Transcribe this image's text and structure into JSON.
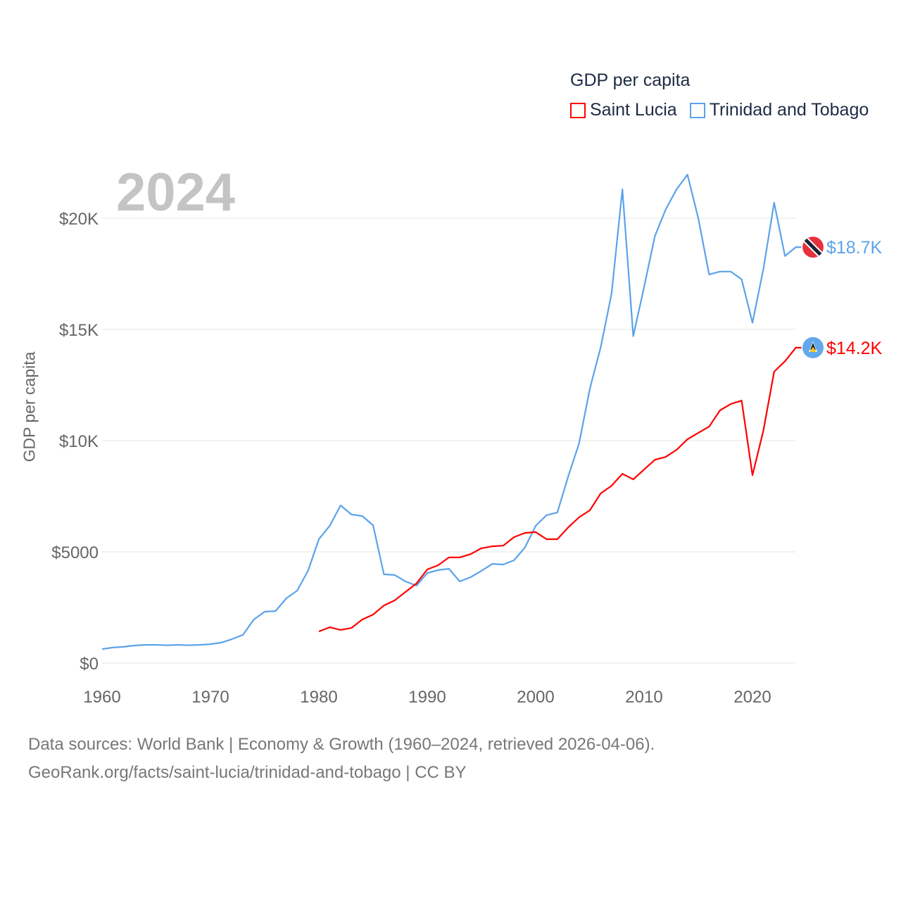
{
  "legend": {
    "title": "GDP per capita",
    "items": [
      {
        "label": "Saint Lucia",
        "color": "#ff0000"
      },
      {
        "label": "Trinidad and Tobago",
        "color": "#5ba3ea"
      }
    ]
  },
  "current_year": "2024",
  "footer": {
    "line1": "Data sources: World Bank | Economy & Growth (1960–2024, retrieved 2026-04-06).",
    "line2": "GeoRank.org/facts/saint-lucia/trinidad-and-tobago | CC BY"
  },
  "chart_data": {
    "type": "line",
    "title": "GDP per capita",
    "xlabel": "",
    "ylabel": "GDP per capita",
    "xlim": [
      1960,
      2024
    ],
    "ylim": [
      0,
      22000
    ],
    "grid": true,
    "legend_position": "top-right",
    "x_ticks": [
      1960,
      1970,
      1980,
      1990,
      2000,
      2010,
      2020
    ],
    "x_tick_labels": [
      "1960",
      "1970",
      "1980",
      "1990",
      "2000",
      "2010",
      "2020"
    ],
    "y_ticks": [
      0,
      5000,
      10000,
      15000,
      20000
    ],
    "y_tick_labels": [
      "$0",
      "$5000",
      "$10K",
      "$15K",
      "$20K"
    ],
    "series": [
      {
        "name": "Trinidad and Tobago",
        "color": "#5ba3ea",
        "end_label": "$18.7K",
        "start_year": 1960,
        "values": [
          630,
          700,
          730,
          790,
          820,
          820,
          800,
          820,
          800,
          820,
          850,
          920,
          1080,
          1270,
          1960,
          2310,
          2340,
          2910,
          3260,
          4150,
          5570,
          6170,
          7090,
          6680,
          6610,
          6200,
          3990,
          3960,
          3670,
          3480,
          4050,
          4180,
          4240,
          3670,
          3860,
          4150,
          4460,
          4430,
          4620,
          5190,
          6170,
          6650,
          6770,
          8390,
          9870,
          12340,
          14200,
          16600,
          21300,
          14700,
          16900,
          19200,
          20400,
          21300,
          21960,
          20000,
          17470,
          17600,
          17600,
          17250,
          15300,
          17700,
          20700,
          18300,
          18700
        ]
      },
      {
        "name": "Saint Lucia",
        "color": "#ff0000",
        "end_label": "$14.2K",
        "start_year": 1980,
        "values": [
          1420,
          1610,
          1490,
          1580,
          1960,
          2180,
          2590,
          2820,
          3200,
          3580,
          4210,
          4400,
          4750,
          4750,
          4900,
          5160,
          5250,
          5280,
          5660,
          5850,
          5890,
          5570,
          5570,
          6100,
          6550,
          6870,
          7630,
          7970,
          8510,
          8260,
          8700,
          9140,
          9270,
          9590,
          10060,
          10350,
          10630,
          11360,
          11650,
          11800,
          8450,
          10440,
          13100,
          13570,
          14180
        ]
      }
    ]
  }
}
